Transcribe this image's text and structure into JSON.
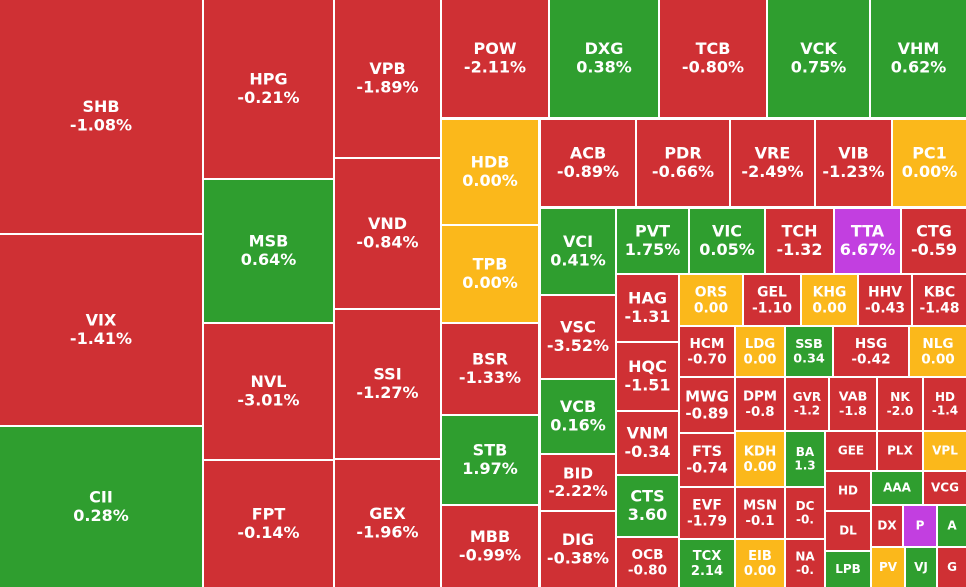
{
  "colors": {
    "down": "#cf3034",
    "up": "#2f9e2f",
    "flat": "#fbb81b",
    "ceiling": "#c23fe0"
  },
  "tiles": [
    {
      "symbol": "SHB",
      "change": "-1.08%",
      "color": "down"
    },
    {
      "symbol": "VIX",
      "change": "-1.41%",
      "color": "down"
    },
    {
      "symbol": "CII",
      "change": "0.28%",
      "color": "up"
    },
    {
      "symbol": "HPG",
      "change": "-0.21%",
      "color": "down"
    },
    {
      "symbol": "MSB",
      "change": "0.64%",
      "color": "up"
    },
    {
      "symbol": "NVL",
      "change": "-3.01%",
      "color": "down"
    },
    {
      "symbol": "FPT",
      "change": "-0.14%",
      "color": "down"
    },
    {
      "symbol": "VPB",
      "change": "-1.89%",
      "color": "down"
    },
    {
      "symbol": "VND",
      "change": "-0.84%",
      "color": "down"
    },
    {
      "symbol": "SSI",
      "change": "-1.27%",
      "color": "down"
    },
    {
      "symbol": "GEX",
      "change": "-1.96%",
      "color": "down"
    },
    {
      "symbol": "POW",
      "change": "-2.11%",
      "color": "down"
    },
    {
      "symbol": "DXG",
      "change": "0.38%",
      "color": "up"
    },
    {
      "symbol": "TCB",
      "change": "-0.80%",
      "color": "down"
    },
    {
      "symbol": "VCK",
      "change": "0.75%",
      "color": "up"
    },
    {
      "symbol": "VHM",
      "change": "0.62%",
      "color": "up"
    },
    {
      "symbol": "HDB",
      "change": "0.00%",
      "color": "flat"
    },
    {
      "symbol": "ACB",
      "change": "-0.89%",
      "color": "down"
    },
    {
      "symbol": "PDR",
      "change": "-0.66%",
      "color": "down"
    },
    {
      "symbol": "VRE",
      "change": "-2.49%",
      "color": "down"
    },
    {
      "symbol": "VIB",
      "change": "-1.23%",
      "color": "down"
    },
    {
      "symbol": "PC1",
      "change": "0.00%",
      "color": "flat"
    },
    {
      "symbol": "TPB",
      "change": "0.00%",
      "color": "flat"
    },
    {
      "symbol": "BSR",
      "change": "-1.33%",
      "color": "down"
    },
    {
      "symbol": "STB",
      "change": "1.97%",
      "color": "up"
    },
    {
      "symbol": "MBB",
      "change": "-0.99%",
      "color": "down"
    },
    {
      "symbol": "VCI",
      "change": "0.41%",
      "color": "up"
    },
    {
      "symbol": "VSC",
      "change": "-3.52%",
      "color": "down"
    },
    {
      "symbol": "VCB",
      "change": "0.16%",
      "color": "up"
    },
    {
      "symbol": "BID",
      "change": "-2.22%",
      "color": "down"
    },
    {
      "symbol": "DIG",
      "change": "-0.38%",
      "color": "down"
    },
    {
      "symbol": "PVT",
      "change": "1.75%",
      "color": "up"
    },
    {
      "symbol": "VIC",
      "change": "0.05%",
      "color": "up"
    },
    {
      "symbol": "TCH",
      "change": "-1.32",
      "color": "down"
    },
    {
      "symbol": "TTA",
      "change": "6.67%",
      "color": "ceiling"
    },
    {
      "symbol": "CTG",
      "change": "-0.59",
      "color": "down"
    },
    {
      "symbol": "HAG",
      "change": "-1.31",
      "color": "down"
    },
    {
      "symbol": "HQC",
      "change": "-1.51",
      "color": "down"
    },
    {
      "symbol": "VNM",
      "change": "-0.34",
      "color": "down"
    },
    {
      "symbol": "CTS",
      "change": "3.60",
      "color": "up"
    },
    {
      "symbol": "OCB",
      "change": "-0.80",
      "color": "down"
    },
    {
      "symbol": "ORS",
      "change": "0.00",
      "color": "flat"
    },
    {
      "symbol": "GEL",
      "change": "-1.10",
      "color": "down"
    },
    {
      "symbol": "KHG",
      "change": "0.00",
      "color": "flat"
    },
    {
      "symbol": "HHV",
      "change": "-0.43",
      "color": "down"
    },
    {
      "symbol": "KBC",
      "change": "-1.48",
      "color": "down"
    },
    {
      "symbol": "HCM",
      "change": "-0.70",
      "color": "down"
    },
    {
      "symbol": "LDG",
      "change": "0.00",
      "color": "flat"
    },
    {
      "symbol": "SSB",
      "change": "0.34",
      "color": "up"
    },
    {
      "symbol": "HSG",
      "change": "-0.42",
      "color": "down"
    },
    {
      "symbol": "NLG",
      "change": "0.00",
      "color": "flat"
    },
    {
      "symbol": "MWG",
      "change": "-0.89",
      "color": "down"
    },
    {
      "symbol": "DPM",
      "change": "-0.8",
      "color": "down"
    },
    {
      "symbol": "GVR",
      "change": "-1.2",
      "color": "down"
    },
    {
      "symbol": "VAB",
      "change": "-1.8",
      "color": "down"
    },
    {
      "symbol": "NK",
      "change": "-2.0",
      "color": "down"
    },
    {
      "symbol": "HD",
      "change": "-1.4",
      "color": "down"
    },
    {
      "symbol": "FTS",
      "change": "-0.74",
      "color": "down"
    },
    {
      "symbol": "KDH",
      "change": "0.00",
      "color": "flat"
    },
    {
      "symbol": "BA",
      "change": "1.3",
      "color": "up"
    },
    {
      "symbol": "GEE",
      "color": "down"
    },
    {
      "symbol": "PLX",
      "color": "down"
    },
    {
      "symbol": "VPL",
      "color": "flat"
    },
    {
      "symbol": "EVF",
      "change": "-1.79",
      "color": "down"
    },
    {
      "symbol": "MSN",
      "change": "-0.1",
      "color": "down"
    },
    {
      "symbol": "DC",
      "change": "-0.",
      "color": "down"
    },
    {
      "symbol": "HD",
      "color": "down"
    },
    {
      "symbol": "AAA",
      "color": "up"
    },
    {
      "symbol": "VCG",
      "color": "down"
    },
    {
      "symbol": "TCX",
      "change": "2.14",
      "color": "up"
    },
    {
      "symbol": "EIB",
      "change": "0.00",
      "color": "flat"
    },
    {
      "symbol": "NA",
      "change": "-0.",
      "color": "down"
    },
    {
      "symbol": "DL",
      "color": "down"
    },
    {
      "symbol": "DX",
      "color": "down"
    },
    {
      "symbol": "P",
      "color": "ceiling"
    },
    {
      "symbol": "A",
      "color": "up"
    },
    {
      "symbol": "LPB",
      "color": "up"
    },
    {
      "symbol": "PV",
      "color": "flat"
    },
    {
      "symbol": "VJ",
      "color": "up"
    },
    {
      "symbol": "G",
      "color": "down"
    }
  ]
}
